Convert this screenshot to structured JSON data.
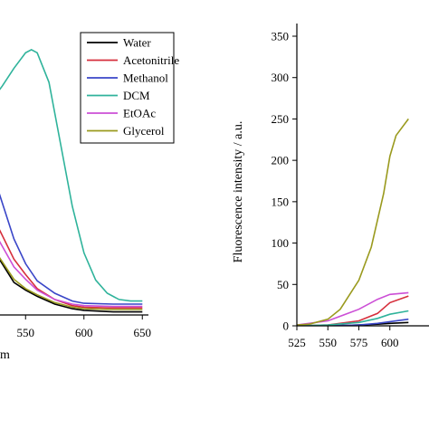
{
  "chart_data": [
    {
      "type": "line",
      "panel": "left",
      "xlabel": "m",
      "ylabel": "",
      "x_ticks": [
        "",
        "550",
        "600",
        "650"
      ],
      "xlim": [
        525,
        650
      ],
      "ylim": [
        0,
        350
      ],
      "legend_position": "top-right",
      "series": [
        {
          "name": "Water",
          "color": "#000000",
          "x": [
            525,
            540,
            550,
            560,
            575,
            590,
            600,
            625,
            650
          ],
          "y": [
            78,
            42,
            32,
            24,
            14,
            8,
            6,
            4,
            4
          ]
        },
        {
          "name": "Acetonitrile",
          "color": "#d62f3c",
          "x": [
            525,
            540,
            550,
            560,
            575,
            590,
            600,
            625,
            650
          ],
          "y": [
            118,
            72,
            52,
            34,
            20,
            12,
            10,
            9,
            9
          ]
        },
        {
          "name": "Methanol",
          "color": "#3a46c8",
          "x": [
            525,
            540,
            550,
            560,
            575,
            590,
            600,
            625,
            650
          ],
          "y": [
            168,
            98,
            66,
            44,
            28,
            18,
            15,
            14,
            14
          ]
        },
        {
          "name": "DCM",
          "color": "#2fb39b",
          "x": [
            525,
            530,
            540,
            550,
            555,
            560,
            570,
            580,
            590,
            600,
            610,
            620,
            630,
            640,
            650
          ],
          "y": [
            285,
            295,
            318,
            338,
            342,
            338,
            300,
            220,
            140,
            80,
            45,
            28,
            20,
            18,
            18
          ]
        },
        {
          "name": "EtOAc",
          "color": "#cc4fd6",
          "x": [
            525,
            540,
            550,
            560,
            575,
            590,
            600,
            625,
            650
          ],
          "y": [
            102,
            62,
            46,
            32,
            20,
            14,
            12,
            11,
            11
          ]
        },
        {
          "name": "Glycerol",
          "color": "#9a9a1e",
          "x": [
            525,
            540,
            550,
            560,
            575,
            590,
            600,
            625,
            650
          ],
          "y": [
            80,
            46,
            34,
            26,
            16,
            10,
            8,
            7,
            7
          ]
        }
      ]
    },
    {
      "type": "line",
      "panel": "right",
      "xlabel": "",
      "ylabel": "Fluorescence intensity / a.u.",
      "x_ticks": [
        "525",
        "550",
        "575",
        "600"
      ],
      "y_ticks": [
        "0",
        "50",
        "100",
        "150",
        "200",
        "250",
        "300",
        "350"
      ],
      "xlim": [
        525,
        615
      ],
      "ylim": [
        0,
        350
      ],
      "series": [
        {
          "name": "Water",
          "color": "#000000",
          "x": [
            525,
            550,
            575,
            590,
            600,
            615
          ],
          "y": [
            0,
            0,
            1,
            2,
            3,
            4
          ]
        },
        {
          "name": "Acetonitrile",
          "color": "#d62f3c",
          "x": [
            525,
            550,
            575,
            590,
            600,
            615
          ],
          "y": [
            0,
            1,
            6,
            15,
            28,
            36
          ]
        },
        {
          "name": "Methanol",
          "color": "#3a46c8",
          "x": [
            525,
            550,
            575,
            590,
            600,
            615
          ],
          "y": [
            0,
            0,
            1,
            3,
            5,
            8
          ]
        },
        {
          "name": "DCM",
          "color": "#2fb39b",
          "x": [
            525,
            550,
            575,
            590,
            600,
            615
          ],
          "y": [
            0,
            1,
            4,
            9,
            14,
            18
          ]
        },
        {
          "name": "EtOAc",
          "color": "#cc4fd6",
          "x": [
            525,
            550,
            575,
            590,
            600,
            615
          ],
          "y": [
            1,
            6,
            20,
            32,
            38,
            40
          ]
        },
        {
          "name": "Glycerol",
          "color": "#9a9a1e",
          "x": [
            525,
            535,
            550,
            560,
            575,
            585,
            595,
            600,
            605,
            615
          ],
          "y": [
            1,
            2,
            8,
            20,
            55,
            95,
            160,
            205,
            230,
            250
          ]
        }
      ]
    }
  ]
}
